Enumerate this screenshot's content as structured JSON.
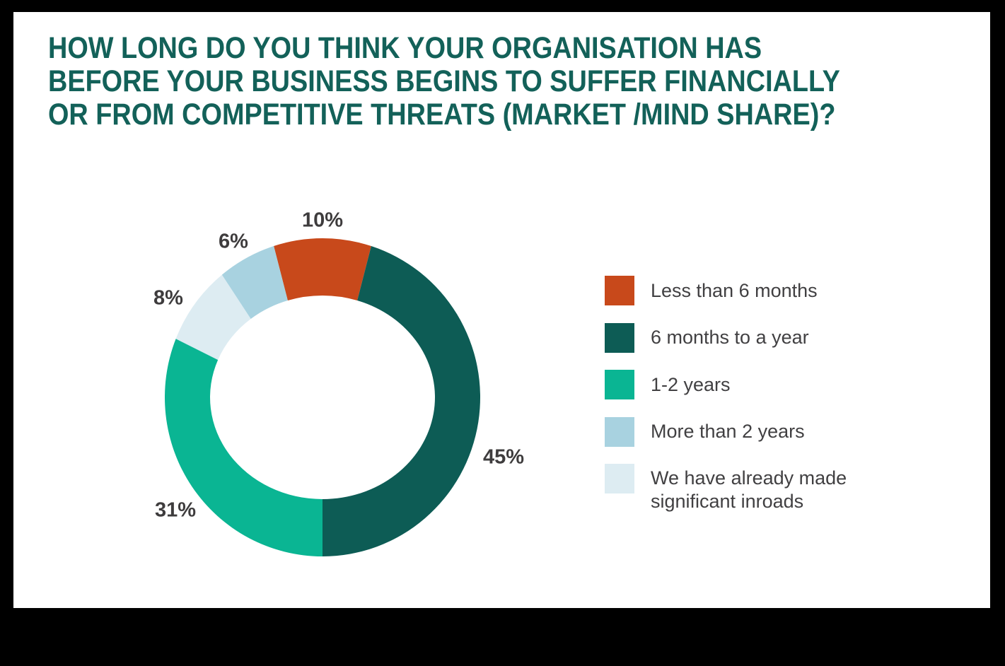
{
  "header": {
    "title_lines": [
      "HOW LONG DO YOU THINK YOUR ORGANISATION HAS",
      "BEFORE YOUR BUSINESS BEGINS TO SUFFER FINANCIALLY",
      "OR FROM COMPETITIVE THREATS (MARKET /MIND SHARE)?"
    ],
    "title_color": "#136159"
  },
  "chart_data": {
    "type": "pie",
    "subtype": "donut",
    "title": "HOW LONG DO YOU THINK YOUR ORGANISATION HAS BEFORE YOUR BUSINESS BEGINS TO SUFFER FINANCIALLY OR FROM COMPETITIVE THREATS (MARKET /MIND SHARE)?",
    "units": "percent",
    "start_angle_deg": -18,
    "direction": "clockwise",
    "legend_position": "right",
    "segments": [
      {
        "label": "Less than 6 months",
        "value": 10,
        "pct_label": "10%",
        "color": "#c8491b"
      },
      {
        "label": "6 months to a year",
        "value": 45,
        "pct_label": "45%",
        "color": "#0d5c55"
      },
      {
        "label": "1-2 years",
        "value": 31,
        "pct_label": "31%",
        "color": "#0ab593"
      },
      {
        "label": "We have already made significant inroads",
        "value": 8,
        "pct_label": "8%",
        "color": "#ddecf2"
      },
      {
        "label": "More than 2 years",
        "value": 6,
        "pct_label": "6%",
        "color": "#a8d2e0"
      }
    ],
    "legend": [
      {
        "label": "Less than 6 months",
        "color": "#c8491b"
      },
      {
        "label": "6 months to a year",
        "color": "#0d5c55"
      },
      {
        "label": "1-2 years",
        "color": "#0ab593"
      },
      {
        "label": "More than 2 years",
        "color": "#a8d2e0"
      },
      {
        "label": "We have already made significant inroads",
        "color": "#ddecf2"
      }
    ]
  },
  "colors": {
    "frame": "#000000",
    "background": "#ffffff",
    "title": "#136159",
    "pct_label": "#3e3c3d",
    "legend_text": "#414042"
  }
}
